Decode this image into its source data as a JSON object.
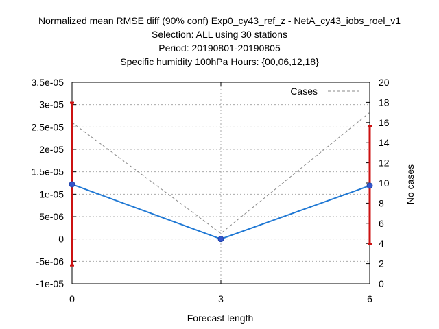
{
  "chart_data": {
    "type": "line",
    "title_lines": [
      "Normalized mean RMSE diff (90% conf) Exp0_cy43_ref_z - NetA_cy43_iobs_roel_v1",
      "Selection: ALL using    30 stations",
      "Period: 20190801-20190805",
      "Specific humidity 100hPa   Hours: {00,06,12,18}"
    ],
    "xlabel": "Forecast length",
    "ylabel_right": "No cases",
    "x": [
      0,
      3,
      6
    ],
    "x_ticks": [
      "0",
      "3",
      "6"
    ],
    "ylim_left": [
      -1e-05,
      3.5e-05
    ],
    "y_left_ticks": [
      "-1e-05",
      "-5e-06",
      "0",
      "5e-06",
      "1e-05",
      "1.5e-05",
      "2e-05",
      "2.5e-05",
      "3e-05",
      "3.5e-05"
    ],
    "ylim_right": [
      0,
      20
    ],
    "y_right_ticks": [
      "0",
      "2",
      "4",
      "6",
      "8",
      "10",
      "12",
      "14",
      "16",
      "18",
      "20"
    ],
    "grid": true,
    "legend": {
      "position": "top-right",
      "entries": [
        "Cases"
      ]
    },
    "series": [
      {
        "axis": "left",
        "values": [
          1.22e-05,
          0,
          1.19e-05
        ],
        "error_low": [
          -5.9e-06,
          -2e-07,
          -1.1e-06
        ],
        "error_high": [
          3.04e-05,
          2e-07,
          2.52e-05
        ]
      },
      {
        "name": "Cases",
        "axis": "right",
        "values": [
          16,
          5,
          17
        ]
      }
    ],
    "colors": {
      "main_line": "#1f78d4",
      "marker": "#3355cc",
      "error_bar": "#cc1111",
      "cases_line": "#888888",
      "grid": "#aaaaaa"
    }
  }
}
